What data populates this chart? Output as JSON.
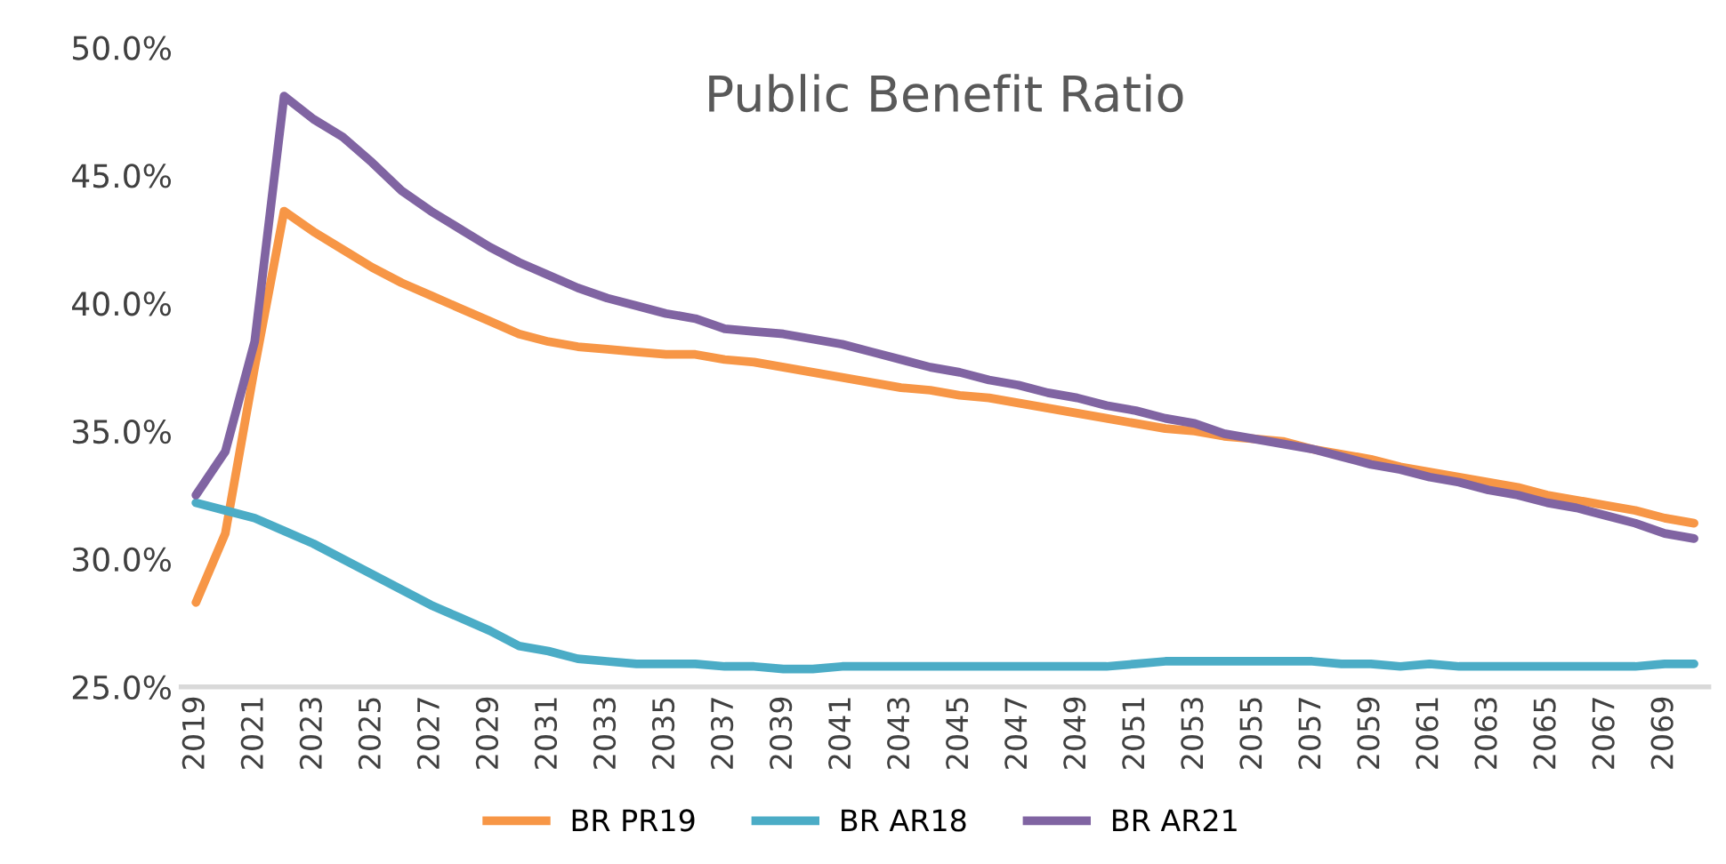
{
  "chart_data": {
    "type": "line",
    "title": "Public Benefit Ratio",
    "categories": [
      "2019",
      null,
      "2021",
      null,
      "2023",
      null,
      "2025",
      null,
      "2027",
      null,
      "2029",
      null,
      "2031",
      null,
      "2033",
      null,
      "2035",
      null,
      "2037",
      null,
      "2039",
      null,
      "2041",
      null,
      "2043",
      null,
      "2045",
      null,
      "2047",
      null,
      "2049",
      null,
      "2051",
      null,
      "2053",
      null,
      "2055",
      null,
      "2057",
      null,
      "2059",
      null,
      "2061",
      null,
      "2063",
      null,
      "2065",
      null,
      "2067",
      null,
      "2069",
      null
    ],
    "series": [
      {
        "name": "BR PR19",
        "color": "#f79646",
        "values": [
          28.3,
          31.0,
          37.5,
          43.6,
          42.8,
          42.1,
          41.4,
          40.8,
          40.3,
          39.8,
          39.3,
          38.8,
          38.5,
          38.3,
          38.2,
          38.1,
          38.0,
          38.0,
          37.8,
          37.7,
          37.5,
          37.3,
          37.1,
          36.9,
          36.7,
          36.6,
          36.4,
          36.3,
          36.1,
          35.9,
          35.7,
          35.5,
          35.3,
          35.1,
          35.0,
          34.8,
          34.7,
          34.6,
          34.3,
          34.1,
          33.9,
          33.6,
          33.4,
          33.2,
          33.0,
          32.8,
          32.5,
          32.3,
          32.1,
          31.9,
          31.6,
          31.4
        ]
      },
      {
        "name": "BR AR18",
        "color": "#4bacc6",
        "values": [
          32.2,
          31.9,
          31.6,
          31.1,
          30.6,
          30.0,
          29.4,
          28.8,
          28.2,
          27.7,
          27.2,
          26.6,
          26.4,
          26.1,
          26.0,
          25.9,
          25.9,
          25.9,
          25.8,
          25.8,
          25.7,
          25.7,
          25.8,
          25.8,
          25.8,
          25.8,
          25.8,
          25.8,
          25.8,
          25.8,
          25.8,
          25.8,
          25.9,
          26.0,
          26.0,
          26.0,
          26.0,
          26.0,
          26.0,
          25.9,
          25.9,
          25.8,
          25.9,
          25.8,
          25.8,
          25.8,
          25.8,
          25.8,
          25.8,
          25.8,
          25.9,
          25.9
        ]
      },
      {
        "name": "BR AR21",
        "color": "#8064a2",
        "values": [
          32.5,
          34.2,
          38.5,
          48.1,
          47.2,
          46.5,
          45.5,
          44.4,
          43.6,
          42.9,
          42.2,
          41.6,
          41.1,
          40.6,
          40.2,
          39.9,
          39.6,
          39.4,
          39.0,
          38.9,
          38.8,
          38.6,
          38.4,
          38.1,
          37.8,
          37.5,
          37.3,
          37.0,
          36.8,
          36.5,
          36.3,
          36.0,
          35.8,
          35.5,
          35.3,
          34.9,
          34.7,
          34.5,
          34.3,
          34.0,
          33.7,
          33.5,
          33.2,
          33.0,
          32.7,
          32.5,
          32.2,
          32.0,
          31.7,
          31.4,
          31.0,
          30.8
        ]
      }
    ],
    "ylim": [
      25,
      50
    ],
    "yticks": [
      {
        "value": 25,
        "label": "25.0%"
      },
      {
        "value": 30,
        "label": "30.0%"
      },
      {
        "value": 35,
        "label": "35.0%"
      },
      {
        "value": 40,
        "label": "40.0%"
      },
      {
        "value": 45,
        "label": "45.0%"
      },
      {
        "value": 50,
        "label": "50.0%"
      }
    ],
    "grid": false,
    "legend": "bottom",
    "marker": "none",
    "line_style": "solid"
  }
}
